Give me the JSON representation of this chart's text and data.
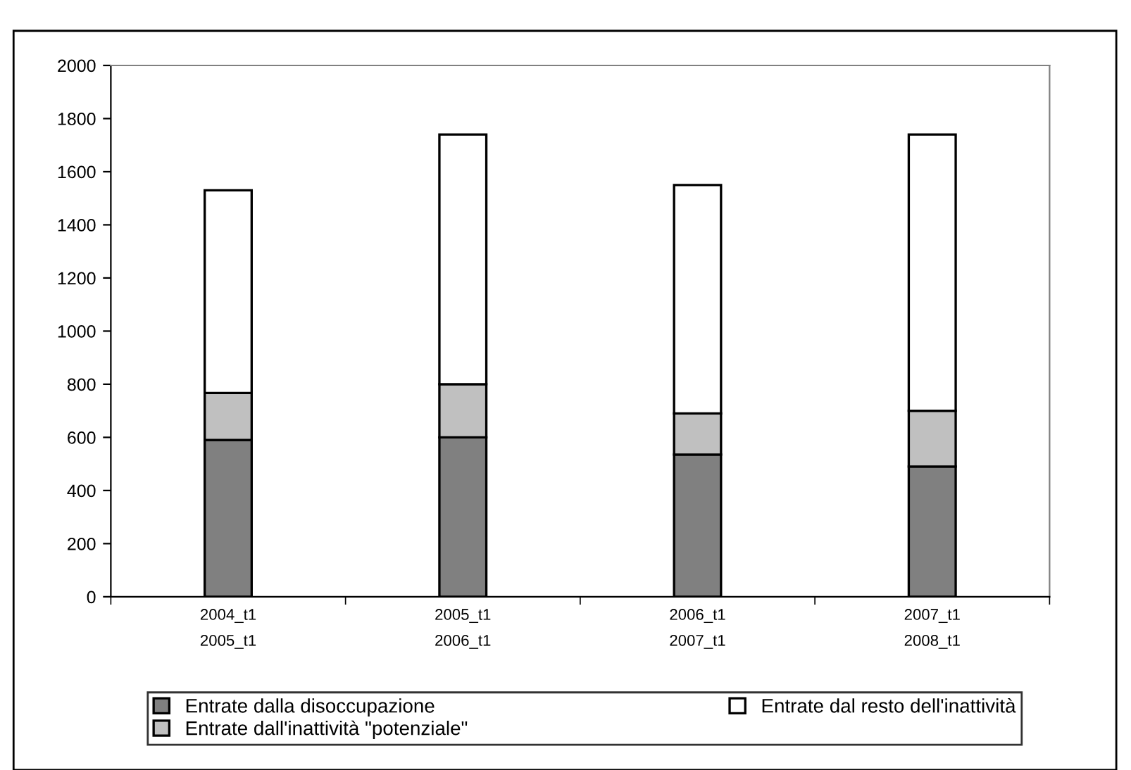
{
  "chart_data": {
    "type": "bar",
    "stacked": true,
    "categories": [
      "2004_t1\n2005_t1",
      "2005_t1\n2006_t1",
      "2006_t1\n2007_t1",
      "2007_t1\n2008_t1"
    ],
    "series": [
      {
        "name": "Entrate dalla disoccupazione",
        "color": "#808080",
        "values": [
          590,
          600,
          535,
          490
        ]
      },
      {
        "name": "Entrate dall'inattività \"potenziale\"",
        "color": "#c0c0c0",
        "values": [
          177,
          200,
          155,
          210
        ]
      },
      {
        "name": "Entrate dal resto dell'inattività",
        "color": "#ffffff",
        "values": [
          763,
          940,
          860,
          1040
        ]
      }
    ],
    "ylim": [
      0,
      2000
    ],
    "yticks": [
      0,
      200,
      400,
      600,
      800,
      1000,
      1200,
      1400,
      1600,
      1800,
      2000
    ],
    "grid": false,
    "legend": "bottom"
  }
}
